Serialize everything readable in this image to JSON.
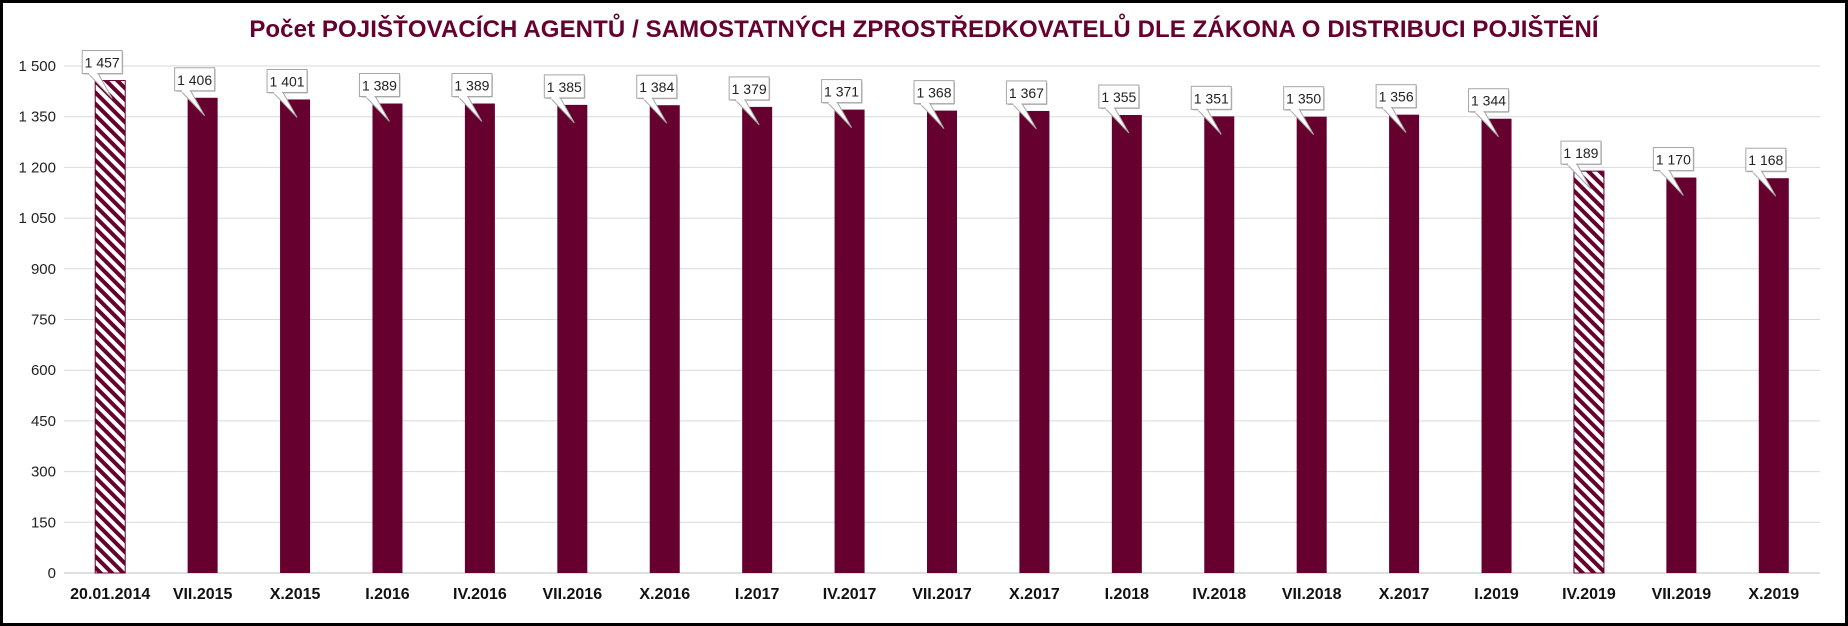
{
  "chart_data": {
    "type": "bar",
    "title": "Počet POJIŠŤOVACÍCH AGENTŮ / SAMOSTATNÝCH ZPROSTŘEDKOVATELŮ DLE ZÁKONA O DISTRIBUCI POJIŠTĚNÍ",
    "categories": [
      "20.01.2014",
      "VII.2015",
      "X.2015",
      "I.2016",
      "IV.2016",
      "VII.2016",
      "X.2016",
      "I.2017",
      "IV.2017",
      "VII.2017",
      "X.2017",
      "I.2018",
      "IV.2018",
      "VII.2018",
      "X.2017",
      "I.2019",
      "IV.2019",
      "VII.2019",
      "X.2019"
    ],
    "values": [
      1457,
      1406,
      1401,
      1389,
      1389,
      1385,
      1384,
      1379,
      1371,
      1368,
      1367,
      1355,
      1351,
      1350,
      1356,
      1344,
      1189,
      1170,
      1168
    ],
    "value_labels": [
      "1 457",
      "1 406",
      "1 401",
      "1 389",
      "1 389",
      "1 385",
      "1 384",
      "1 379",
      "1 371",
      "1 368",
      "1 367",
      "1 355",
      "1 351",
      "1 350",
      "1 356",
      "1 344",
      "1 189",
      "1 170",
      "1 168"
    ],
    "hatched": [
      true,
      false,
      false,
      false,
      false,
      false,
      false,
      false,
      false,
      false,
      false,
      false,
      false,
      false,
      false,
      false,
      true,
      false,
      false
    ],
    "yticks": [
      0,
      150,
      300,
      450,
      600,
      750,
      900,
      1050,
      1200,
      1350,
      1500
    ],
    "ytick_labels": [
      "0",
      "150",
      "300",
      "450",
      "600",
      "750",
      "900",
      "1 050",
      "1 200",
      "1 350",
      "1 500"
    ],
    "ylim": [
      0,
      1500
    ],
    "xlabel": "",
    "ylabel": "",
    "grid": true,
    "legend": "none",
    "colors": {
      "bar": "#66002f",
      "title": "#66002f",
      "grid": "#d9d9d9",
      "hatch_bg": "#ffffff"
    }
  }
}
